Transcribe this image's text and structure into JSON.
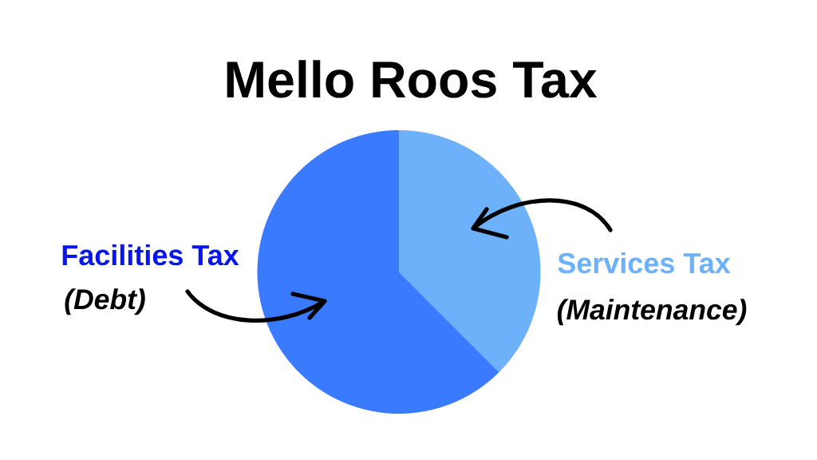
{
  "chart_data": {
    "type": "pie",
    "title": "Mello Roos Tax",
    "categories": [
      "Services Tax",
      "Facilities Tax"
    ],
    "values": [
      37.5,
      62.5
    ],
    "colors": [
      "#6cb1f9",
      "#3a7afe"
    ],
    "annotations": [
      "(Maintenance)",
      "(Debt)"
    ]
  }
}
